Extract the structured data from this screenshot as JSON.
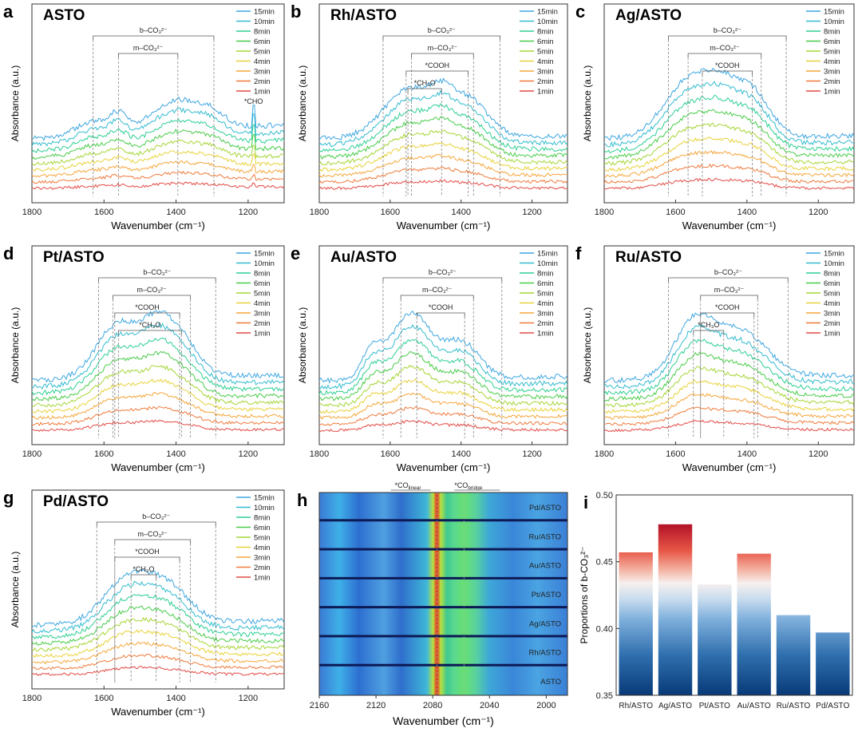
{
  "figure": {
    "xlabel": "Wavenumber (cm⁻¹)",
    "ylabel": "Absorbance (a.u.)",
    "x_ticks": [
      1800,
      1600,
      1400,
      1200
    ],
    "x_range": [
      1800,
      1100
    ],
    "legend": [
      "15min",
      "10min",
      "8min",
      "6min",
      "5min",
      "4min",
      "3min",
      "2min",
      "1min"
    ],
    "series_colors": [
      "#3fa7e0",
      "#34bccf",
      "#2ecf93",
      "#49cc4a",
      "#a6d536",
      "#e8d23a",
      "#f5a63a",
      "#ef7a3c",
      "#e24a45"
    ]
  },
  "annotation_labels": {
    "b": "b–CO₃²⁻",
    "m": "m–CO₃²⁻",
    "cooh": "*COOH",
    "ch3o": "*CH₃O",
    "cho": "*CHO"
  },
  "spectra_panels": [
    {
      "letter": "a",
      "title": "ASTO",
      "b": [
        1630,
        1295
      ],
      "m": [
        1560,
        1395
      ],
      "cooh": null,
      "ch3o": null,
      "cho": 1185,
      "peaks": [
        [
          1630,
          0.25,
          45
        ],
        [
          1560,
          0.3,
          25
        ],
        [
          1400,
          0.55,
          70
        ],
        [
          1300,
          0.2,
          40
        ]
      ],
      "end_level": 0.5
    },
    {
      "letter": "b",
      "title": "Rh/ASTO",
      "b": [
        1620,
        1290
      ],
      "m": [
        1540,
        1365
      ],
      "cooh": [
        1555,
        1380
      ],
      "ch3o": [
        1550,
        1455
      ],
      "cho": null,
      "peaks": [
        [
          1540,
          0.9,
          75
        ],
        [
          1380,
          0.65,
          55
        ],
        [
          1455,
          0.3,
          30
        ]
      ],
      "end_level": 0.1
    },
    {
      "letter": "c",
      "title": "Ag/ASTO",
      "b": [
        1620,
        1290
      ],
      "m": [
        1565,
        1360
      ],
      "cooh": [
        1525,
        1385
      ],
      "ch3o": null,
      "cho": null,
      "peaks": [
        [
          1560,
          1.05,
          70
        ],
        [
          1385,
          0.8,
          50
        ],
        [
          1470,
          0.55,
          45
        ]
      ],
      "end_level": 0.1
    },
    {
      "letter": "d",
      "title": "Pt/ASTO",
      "b": [
        1615,
        1290
      ],
      "m": [
        1575,
        1360
      ],
      "cooh": [
        1570,
        1390
      ],
      "ch3o": [
        1560,
        1385
      ],
      "cho": null,
      "peaks": [
        [
          1560,
          1.0,
          60
        ],
        [
          1400,
          0.8,
          55
        ],
        [
          1460,
          0.5,
          40
        ]
      ],
      "end_level": 0.2
    },
    {
      "letter": "e",
      "title": "Au/ASTO",
      "b": [
        1620,
        1285
      ],
      "m": [
        1570,
        1365
      ],
      "cooh": [
        1525,
        1390
      ],
      "ch3o": null,
      "cho": null,
      "peaks": [
        [
          1540,
          1.2,
          55
        ],
        [
          1400,
          0.65,
          50
        ],
        [
          1650,
          0.5,
          30
        ]
      ],
      "end_level": 0.15
    },
    {
      "letter": "f",
      "title": "Ru/ASTO",
      "b": [
        1620,
        1285
      ],
      "m": [
        1530,
        1370
      ],
      "cooh": [
        1530,
        1380
      ],
      "ch3o": [
        1550,
        1465
      ],
      "cho": null,
      "peaks": [
        [
          1550,
          0.95,
          55
        ],
        [
          1420,
          0.85,
          75
        ]
      ],
      "end_level": 0.2
    },
    {
      "letter": "g",
      "title": "Pd/ASTO",
      "b": [
        1620,
        1290
      ],
      "m": [
        1570,
        1360
      ],
      "cooh": [
        1570,
        1390
      ],
      "ch3o": [
        1525,
        1455
      ],
      "cho": null,
      "peaks": [
        [
          1535,
          0.8,
          65
        ],
        [
          1420,
          0.6,
          60
        ]
      ],
      "end_level": 0.15
    }
  ],
  "panel_h": {
    "letter": "h",
    "xlabel": "Wavenumber (cm⁻¹)",
    "x_ticks": [
      2160,
      2120,
      2080,
      2040,
      2000
    ],
    "x_range": [
      2160,
      1985
    ],
    "strip_labels": [
      "Pd/ASTO",
      "Ru/ASTO",
      "Au/ASTO",
      "Pt/ASTO",
      "Ag/ASTO",
      "Rh/ASTO",
      "ASTO"
    ],
    "co_linear": "*CO",
    "co_linear_sub": "linear",
    "co_bridge": "*CO",
    "co_bridge_sub": "bridge",
    "co_linear_peak": 2077,
    "co_bridge_center": 2058
  },
  "chart_data": [
    {
      "type": "bar",
      "ylabel": "Proportions of b-CO₃²⁻",
      "ylim": [
        0.35,
        0.5
      ],
      "y_ticks": [
        0.35,
        0.4,
        0.45,
        0.5
      ],
      "categories": [
        "Rh/ASTO",
        "Ag/ASTO",
        "Pt/ASTO",
        "Au/ASTO",
        "Ru/ASTO",
        "Pd/ASTO"
      ],
      "values": [
        0.457,
        0.478,
        0.433,
        0.456,
        0.41,
        0.397
      ]
    }
  ]
}
